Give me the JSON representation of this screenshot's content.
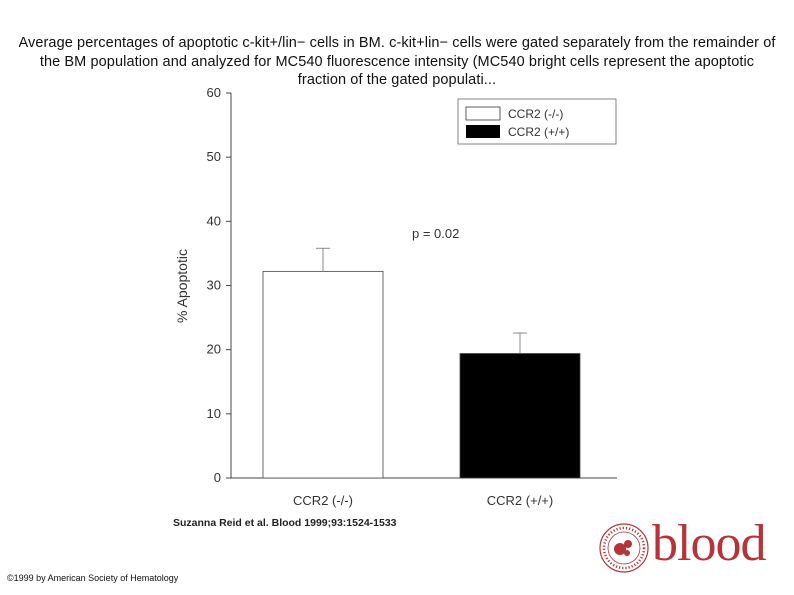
{
  "title": "Average percentages of apoptotic c-kit+/lin− cells in BM. c-kit+lin− cells were gated separately from the remainder of the BM population and analyzed for MC540 fluorescence intensity (MC540 bright cells represent the apoptotic fraction of the gated populati...",
  "citation": "Suzanna Reid et al. Blood 1999;93:1524-1533",
  "copyright": "©1999 by American Society of Hematology",
  "logo": {
    "word": "blood",
    "seal_text": "AMERICAN SOCIETY OF HEMATOLOGY",
    "color": "#b5343a"
  },
  "chart_data": {
    "type": "bar",
    "categories": [
      "CCR2 (-/-)",
      "CCR2 (+/+)"
    ],
    "values": [
      32.2,
      19.4
    ],
    "errors": [
      3.6,
      3.2
    ],
    "colors": [
      "#ffffff",
      "#000000"
    ],
    "ylabel": "% Apoptotic",
    "xlabel": "",
    "ylim": [
      0,
      60
    ],
    "yticks": [
      0,
      10,
      20,
      30,
      40,
      50,
      60
    ],
    "legend": {
      "position": "top-right",
      "entries": [
        "CCR2 (-/-)",
        "CCR2 (+/+)"
      ]
    },
    "annotation": "p = 0.02",
    "grid": false
  }
}
